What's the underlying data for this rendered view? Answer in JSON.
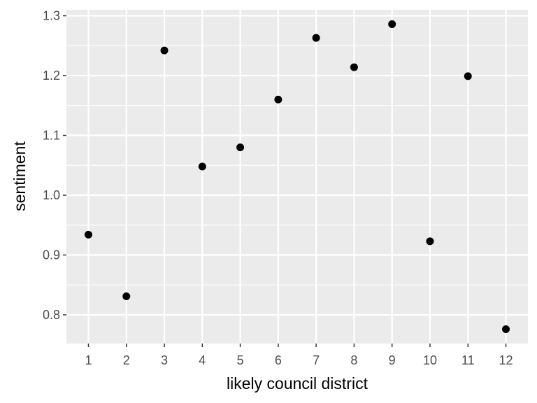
{
  "chart_data": {
    "type": "scatter",
    "title": "",
    "xlabel": "likely council district",
    "ylabel": "sentiment",
    "x_ticks": [
      "1",
      "2",
      "3",
      "4",
      "5",
      "6",
      "7",
      "8",
      "9",
      "10",
      "11",
      "12"
    ],
    "y_ticks": [
      "0.8",
      "0.9",
      "1.0",
      "1.1",
      "1.2",
      "1.3"
    ],
    "xlim": [
      0.42,
      12.58
    ],
    "ylim": [
      0.752,
      1.31
    ],
    "grid": true,
    "colors": {
      "panel": "#ebebeb",
      "grid": "#ffffff",
      "point": "#000000"
    },
    "series": [
      {
        "x": [
          1,
          2,
          3,
          4,
          5,
          6,
          7,
          8,
          9,
          10,
          11,
          12
        ],
        "y": [
          0.934,
          0.831,
          1.242,
          1.048,
          1.08,
          1.16,
          1.263,
          1.214,
          1.286,
          0.923,
          1.199,
          0.776
        ]
      }
    ]
  }
}
